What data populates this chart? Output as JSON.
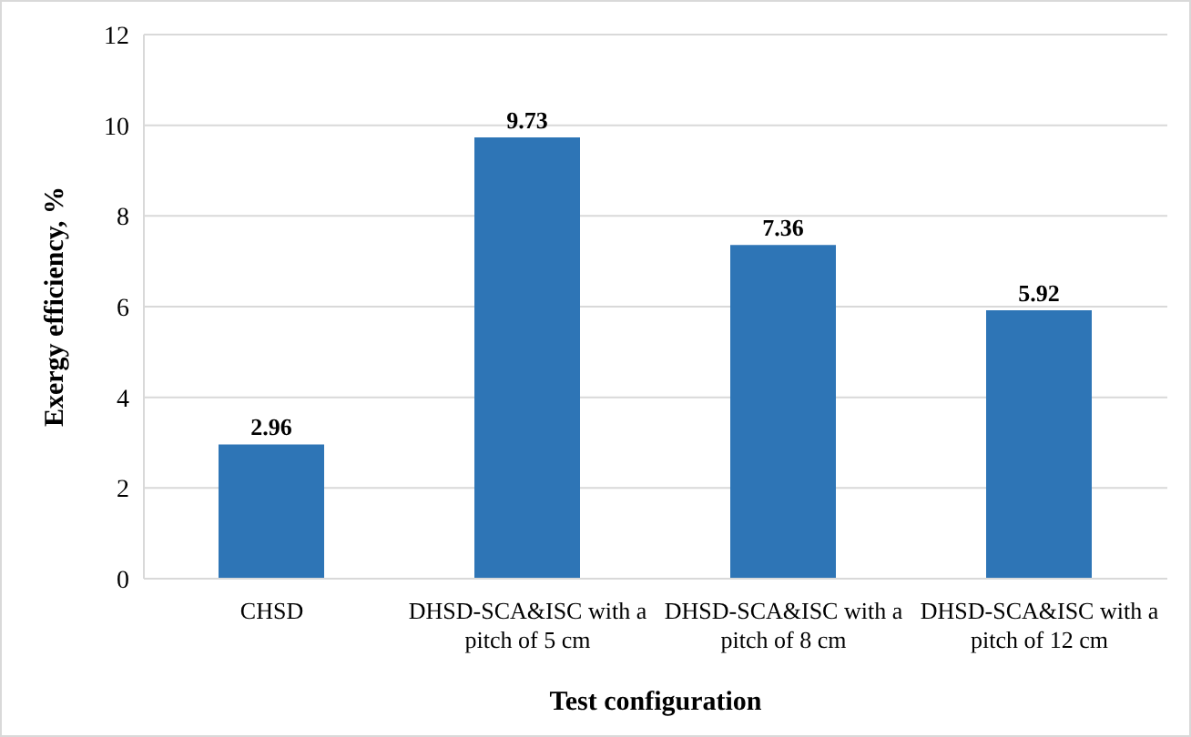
{
  "chart_data": {
    "type": "bar",
    "xlabel": "Test configuration",
    "ylabel": "Exergy efficiency, %",
    "categories": [
      "CHSD",
      "DHSD-SCA&ISC with a pitch of 5 cm",
      "DHSD-SCA&ISC with a pitch of 8 cm",
      "DHSD-SCA&ISC with a pitch of 12 cm"
    ],
    "values": [
      2.96,
      9.73,
      7.36,
      5.92
    ],
    "color": "#2e75b6",
    "ylim": [
      0,
      12
    ],
    "yticks": [
      0,
      2,
      4,
      6,
      8,
      10,
      12
    ],
    "grid": "y",
    "data_labels": true,
    "legend": false
  }
}
